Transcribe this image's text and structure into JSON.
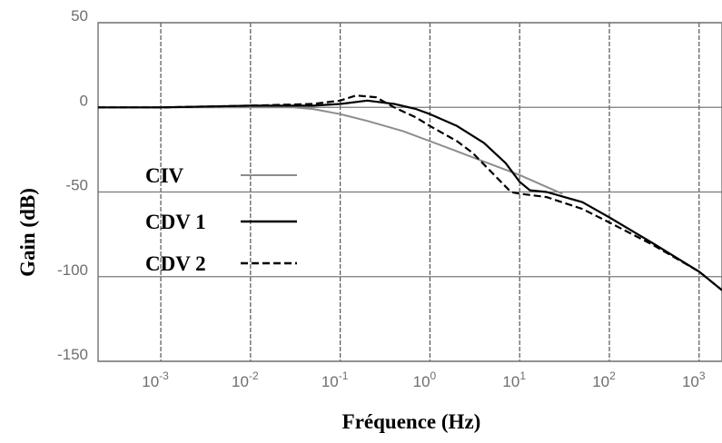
{
  "chart_data": {
    "type": "line",
    "xlabel": "Fréquence (Hz)",
    "ylabel": "Gain (dB)",
    "x_scale": "log",
    "xlim": [
      0.0002,
      1800
    ],
    "ylim": [
      -150,
      50
    ],
    "x_ticks": [
      {
        "value": 0.001,
        "base": "10",
        "exp": "-3"
      },
      {
        "value": 0.01,
        "base": "10",
        "exp": "-2"
      },
      {
        "value": 0.1,
        "base": "10",
        "exp": "-1"
      },
      {
        "value": 1,
        "base": "10",
        "exp": "0"
      },
      {
        "value": 10,
        "base": "10",
        "exp": "1"
      },
      {
        "value": 100,
        "base": "10",
        "exp": "2"
      },
      {
        "value": 1000,
        "base": "10",
        "exp": "3"
      }
    ],
    "y_ticks": [
      {
        "value": 50,
        "label": "50"
      },
      {
        "value": 0,
        "label": "0"
      },
      {
        "value": -50,
        "label": "-50"
      },
      {
        "value": -100,
        "label": "-100"
      },
      {
        "value": -150,
        "label": "-150"
      }
    ],
    "grid": true,
    "legend_position": "left",
    "series": [
      {
        "name": "CIV",
        "color": "#8c8c8c",
        "dash": "solid",
        "points": [
          [
            0.0002,
            0
          ],
          [
            0.001,
            0
          ],
          [
            0.01,
            0
          ],
          [
            0.03,
            0
          ],
          [
            0.05,
            -1
          ],
          [
            0.1,
            -4
          ],
          [
            0.2,
            -8
          ],
          [
            0.5,
            -14
          ],
          [
            1,
            -20
          ],
          [
            2,
            -26
          ],
          [
            5,
            -34
          ],
          [
            10,
            -40
          ],
          [
            20,
            -47
          ],
          [
            30,
            -51
          ]
        ]
      },
      {
        "name": "CDV 1",
        "color": "#000000",
        "dash": "solid",
        "points": [
          [
            0.0002,
            0
          ],
          [
            0.001,
            0
          ],
          [
            0.01,
            1
          ],
          [
            0.05,
            1
          ],
          [
            0.1,
            2
          ],
          [
            0.2,
            4
          ],
          [
            0.4,
            2
          ],
          [
            0.7,
            -1
          ],
          [
            1,
            -4
          ],
          [
            2,
            -11
          ],
          [
            4,
            -21
          ],
          [
            7,
            -33
          ],
          [
            10,
            -44
          ],
          [
            13,
            -49
          ],
          [
            20,
            -50
          ],
          [
            50,
            -56
          ],
          [
            100,
            -65
          ],
          [
            300,
            -80
          ],
          [
            1000,
            -97
          ],
          [
            1800,
            -108
          ]
        ]
      },
      {
        "name": "CDV 2",
        "color": "#000000",
        "dash": "dashed",
        "points": [
          [
            0.0002,
            0
          ],
          [
            0.001,
            0
          ],
          [
            0.01,
            1
          ],
          [
            0.05,
            2
          ],
          [
            0.1,
            4
          ],
          [
            0.15,
            7
          ],
          [
            0.25,
            6
          ],
          [
            0.4,
            0
          ],
          [
            0.7,
            -6
          ],
          [
            1,
            -11
          ],
          [
            2,
            -20
          ],
          [
            3,
            -27
          ],
          [
            5,
            -39
          ],
          [
            8,
            -50
          ],
          [
            10,
            -51
          ],
          [
            20,
            -53
          ],
          [
            50,
            -60
          ],
          [
            100,
            -68
          ],
          [
            300,
            -81
          ],
          [
            1000,
            -97
          ],
          [
            1800,
            -108
          ]
        ]
      }
    ]
  }
}
